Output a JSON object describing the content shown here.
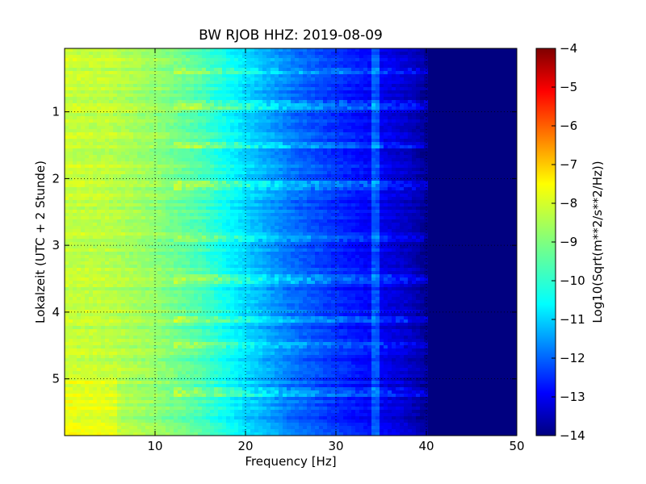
{
  "chart_data": {
    "type": "heatmap",
    "title": "BW RJOB HHZ: 2019-08-09",
    "xlabel": "Frequency [Hz]",
    "ylabel": "Lokalzeit (UTC + 2 Stunde)",
    "xlim": [
      0,
      50
    ],
    "ylim": [
      5.85,
      0.05
    ],
    "x_ticks": [
      10,
      20,
      30,
      40,
      50
    ],
    "y_ticks": [
      1,
      2,
      3,
      4,
      5
    ],
    "grid": true,
    "colormap": "jet",
    "colorbar": {
      "label": "Log10(Sqrt(m**2/s**2/Hz))",
      "range": [
        -14,
        -4
      ],
      "ticks": [
        -14,
        -13,
        -12,
        -11,
        -10,
        -9,
        -8,
        -7,
        -6,
        -5,
        -4
      ]
    },
    "spectral_profile": {
      "frequency_hz": [
        0,
        5,
        10,
        15,
        20,
        25,
        30,
        35,
        38,
        40,
        42,
        50
      ],
      "log10_amplitude": [
        -8.3,
        -8.4,
        -8.8,
        -9.5,
        -10.6,
        -11.6,
        -12.3,
        -12.9,
        -13.3,
        -13.8,
        -14,
        -14
      ]
    },
    "narrowband_line_hz": 34.5,
    "interference_bursts_local_hour": [
      0.4,
      0.9,
      1.5,
      2.1,
      2.9,
      3.5,
      4.1,
      4.5,
      5.2
    ]
  }
}
